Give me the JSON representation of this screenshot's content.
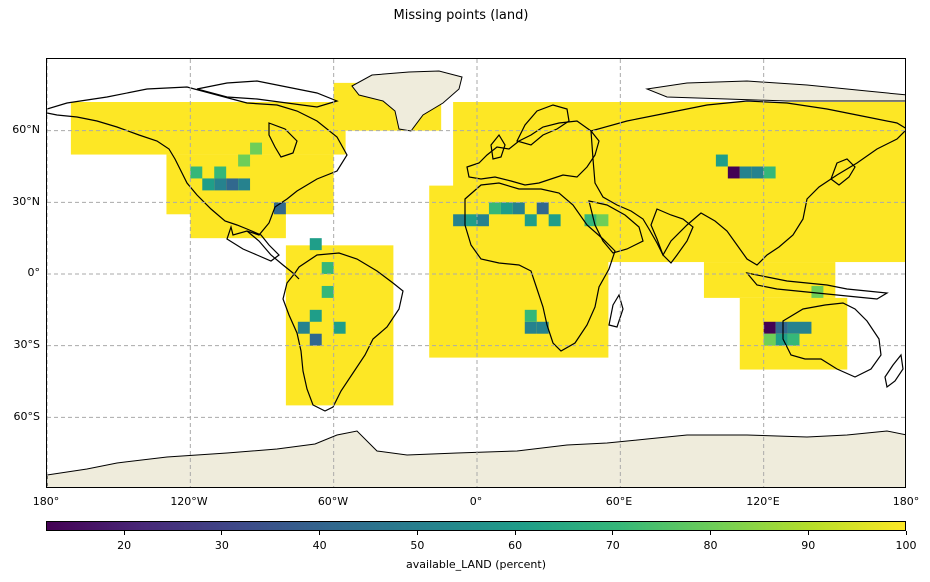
{
  "title": "Missing points (land)",
  "chart_data": {
    "type": "heatmap",
    "projection": "PlateCarree",
    "title": "Missing points (land)",
    "x_ticks": [
      "180°",
      "120°W",
      "60°W",
      "0°",
      "60°E",
      "120°E",
      "180°"
    ],
    "x_tick_values": [
      -180,
      -120,
      -60,
      0,
      60,
      120,
      180
    ],
    "y_ticks": [
      "60°N",
      "30°N",
      "0°",
      "30°S",
      "60°S"
    ],
    "y_tick_values": [
      60,
      30,
      0,
      -30,
      -60
    ],
    "xlim": [
      -180,
      180
    ],
    "ylim": [
      -90,
      90
    ],
    "grid": true,
    "colormap": "viridis",
    "colorbar": {
      "label": "available_LAND (percent)",
      "range": [
        12,
        100
      ],
      "ticks": [
        20,
        30,
        40,
        50,
        60,
        70,
        80,
        90,
        100
      ],
      "tick_labels": [
        "20",
        "30",
        "40",
        "50",
        "60",
        "70",
        "80",
        "90",
        "100"
      ],
      "orientation": "horizontal"
    },
    "cell_size_deg": 5,
    "background_value": 100,
    "land_extent_note": "Most land grid cells are 100 (yellow); deficient cells listed below",
    "low_cells": [
      {
        "lon": -120,
        "lat": 40,
        "value": 72
      },
      {
        "lon": -115,
        "lat": 35,
        "value": 60
      },
      {
        "lon": -110,
        "lat": 40,
        "value": 75
      },
      {
        "lon": -110,
        "lat": 35,
        "value": 50
      },
      {
        "lon": -105,
        "lat": 35,
        "value": 40
      },
      {
        "lon": -100,
        "lat": 35,
        "value": 55
      },
      {
        "lon": -100,
        "lat": 45,
        "value": 80
      },
      {
        "lon": -95,
        "lat": 50,
        "value": 85
      },
      {
        "lon": -85,
        "lat": 25,
        "value": 45
      },
      {
        "lon": -70,
        "lat": 10,
        "value": 60
      },
      {
        "lon": -65,
        "lat": 0,
        "value": 75
      },
      {
        "lon": -65,
        "lat": -10,
        "value": 70
      },
      {
        "lon": -70,
        "lat": -20,
        "value": 60
      },
      {
        "lon": -70,
        "lat": -30,
        "value": 45
      },
      {
        "lon": -75,
        "lat": -25,
        "value": 55
      },
      {
        "lon": -60,
        "lat": -25,
        "value": 65
      },
      {
        "lon": -10,
        "lat": 20,
        "value": 50
      },
      {
        "lon": -5,
        "lat": 20,
        "value": 60
      },
      {
        "lon": 0,
        "lat": 20,
        "value": 55
      },
      {
        "lon": 5,
        "lat": 25,
        "value": 70
      },
      {
        "lon": 10,
        "lat": 25,
        "value": 60
      },
      {
        "lon": 15,
        "lat": 25,
        "value": 55
      },
      {
        "lon": 20,
        "lat": 20,
        "value": 60
      },
      {
        "lon": 25,
        "lat": 25,
        "value": 45
      },
      {
        "lon": 30,
        "lat": 20,
        "value": 65
      },
      {
        "lon": 45,
        "lat": 20,
        "value": 70
      },
      {
        "lon": 50,
        "lat": 20,
        "value": 80
      },
      {
        "lon": 20,
        "lat": -25,
        "value": 50
      },
      {
        "lon": 20,
        "lat": -20,
        "value": 70
      },
      {
        "lon": 25,
        "lat": -25,
        "value": 55
      },
      {
        "lon": 100,
        "lat": 45,
        "value": 65
      },
      {
        "lon": 105,
        "lat": 40,
        "value": 15
      },
      {
        "lon": 110,
        "lat": 40,
        "value": 50
      },
      {
        "lon": 115,
        "lat": 40,
        "value": 55
      },
      {
        "lon": 120,
        "lat": 40,
        "value": 75
      },
      {
        "lon": 120,
        "lat": -25,
        "value": 12
      },
      {
        "lon": 125,
        "lat": -25,
        "value": 45
      },
      {
        "lon": 130,
        "lat": -25,
        "value": 50
      },
      {
        "lon": 135,
        "lat": -25,
        "value": 55
      },
      {
        "lon": 125,
        "lat": -30,
        "value": 65
      },
      {
        "lon": 130,
        "lat": -30,
        "value": 70
      },
      {
        "lon": 120,
        "lat": -30,
        "value": 80
      },
      {
        "lon": 140,
        "lat": -10,
        "value": 85
      }
    ]
  }
}
